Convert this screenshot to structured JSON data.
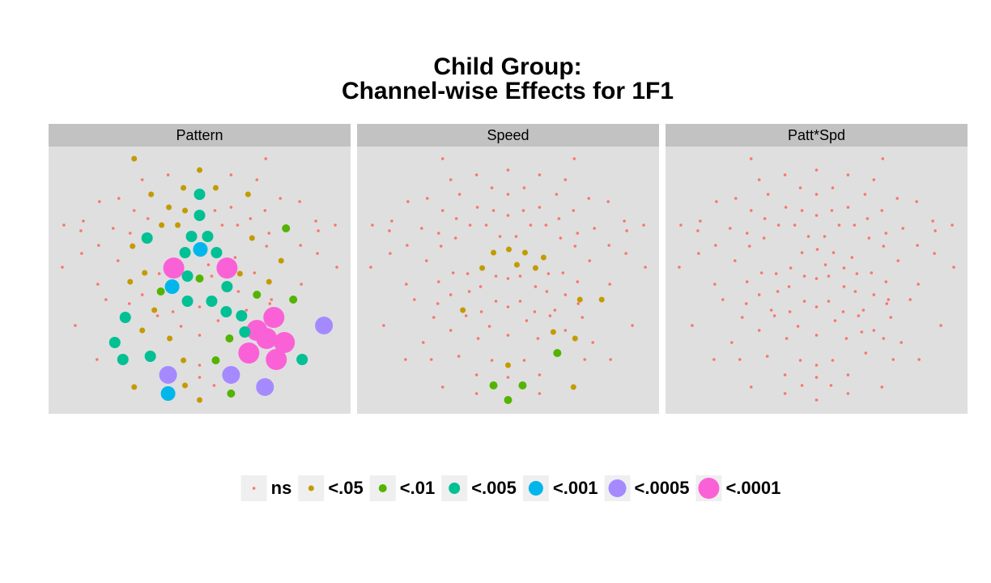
{
  "chart_data": {
    "type": "scatter",
    "title": [
      "Child Group:",
      "Channel-wise Effects for 1F1"
    ],
    "x": [
      -81,
      82,
      0,
      -39,
      39,
      -71,
      71,
      -20,
      20,
      -60,
      0,
      60,
      -100,
      100,
      -124,
      124,
      -38,
      39,
      -81,
      -18,
      19,
      81,
      0,
      -64,
      63,
      -144,
      144,
      -168,
      -47,
      -27,
      28,
      47,
      168,
      -107,
      107,
      -147,
      147,
      -86,
      86,
      -10,
      10,
      -65,
      65,
      -125,
      125,
      -83,
      83,
      1,
      -18,
      21,
      -146,
      146,
      44,
      -101,
      101,
      11,
      -170,
      170,
      -32,
      34,
      -68,
      68,
      -50,
      50,
      -15,
      15,
      0,
      -86,
      86,
      -126,
      126,
      -34,
      34,
      -48,
      48,
      -71,
      71,
      -116,
      116,
      89,
      -15,
      15,
      -87,
      87,
      0,
      -56,
      58,
      -33,
      33,
      -52,
      52,
      -92,
      92,
      23,
      -154,
      154,
      -23,
      -71,
      71,
      56,
      0,
      -37,
      37,
      83,
      -105,
      105,
      61,
      -61,
      -127,
      -95,
      95,
      127,
      -20,
      20,
      0,
      -39,
      39,
      0,
      -18,
      18,
      -81,
      81,
      -39,
      39,
      0
    ],
    "y": [
      150,
      150,
      136,
      130,
      130,
      124,
      124,
      114,
      114,
      106,
      106,
      106,
      101,
      101,
      97,
      97,
      90,
      90,
      86,
      86,
      86,
      86,
      80,
      76,
      76,
      73,
      73,
      68,
      68,
      68,
      68,
      68,
      68,
      64,
      64,
      61,
      61,
      58,
      58,
      54,
      54,
      52,
      52,
      43,
      43,
      42,
      42,
      38,
      34,
      34,
      33,
      33,
      28,
      24,
      24,
      19,
      16,
      16,
      15,
      15,
      9,
      9,
      8,
      8,
      5,
      5,
      2,
      -2,
      -2,
      -5,
      -5,
      -8,
      -8,
      -14,
      -14,
      -18,
      -18,
      -24,
      -24,
      -24,
      -26,
      -26,
      -29,
      -29,
      -33,
      -37,
      -37,
      -39,
      -39,
      -44,
      -44,
      -46,
      -46,
      -50,
      -56,
      -56,
      -57,
      -62,
      -62,
      -64,
      -68,
      -72,
      -72,
      -72,
      -77,
      -77,
      -90,
      -94,
      -98,
      -98,
      -98,
      -98,
      -99,
      -99,
      -105,
      -117,
      -117,
      -120,
      -130,
      -130,
      -132,
      -132,
      -140,
      -140,
      -148
    ],
    "xlim": [
      -187,
      187
    ],
    "ylim": [
      -165,
      165
    ],
    "legend": [
      {
        "name": "ns",
        "color": "#F8766D",
        "size": 1.8
      },
      {
        "name": "<.05",
        "color": "#C49A00",
        "size": 3.5
      },
      {
        "name": "<.01",
        "color": "#53B400",
        "size": 5
      },
      {
        "name": "<.005",
        "color": "#00C094",
        "size": 7
      },
      {
        "name": "<.001",
        "color": "#00B6EB",
        "size": 9
      },
      {
        "name": "<.0005",
        "color": "#A58AFF",
        "size": 11
      },
      {
        "name": "<.0001",
        "color": "#FB61D7",
        "size": 13
      }
    ],
    "facets": [
      {
        "name": "Pattern",
        "levels": [
          1,
          0,
          1,
          0,
          0,
          0,
          0,
          1,
          1,
          1,
          3,
          1,
          0,
          0,
          0,
          0,
          1,
          0,
          0,
          1,
          0,
          0,
          3,
          0,
          0,
          0,
          0,
          0,
          1,
          1,
          0,
          0,
          0,
          0,
          2,
          0,
          0,
          0,
          0,
          3,
          3,
          3,
          1,
          0,
          0,
          1,
          0,
          4,
          3,
          3,
          0,
          0,
          0,
          0,
          1,
          0,
          0,
          0,
          6,
          6,
          1,
          0,
          0,
          1,
          3,
          0,
          2,
          1,
          1,
          0,
          0,
          4,
          3,
          2,
          0,
          0,
          2,
          0,
          2,
          0,
          3,
          3,
          0,
          0,
          0,
          1,
          0,
          0,
          3,
          0,
          3,
          3,
          6,
          0,
          0,
          5,
          0,
          1,
          6,
          3,
          0,
          1,
          2,
          6,
          3,
          6,
          6,
          3,
          0,
          3,
          6,
          3,
          1,
          2,
          0,
          5,
          5,
          0,
          1,
          0,
          1,
          5,
          4,
          2,
          1
        ]
      },
      {
        "name": "Speed",
        "levels": [
          0,
          0,
          0,
          0,
          0,
          0,
          0,
          0,
          0,
          0,
          0,
          0,
          0,
          0,
          0,
          0,
          0,
          0,
          0,
          0,
          0,
          0,
          0,
          0,
          0,
          0,
          0,
          0,
          0,
          0,
          0,
          0,
          0,
          0,
          0,
          0,
          0,
          0,
          0,
          0,
          0,
          0,
          0,
          0,
          0,
          0,
          0,
          1,
          1,
          1,
          0,
          0,
          1,
          0,
          0,
          1,
          0,
          0,
          1,
          1,
          0,
          0,
          0,
          0,
          0,
          0,
          0,
          0,
          0,
          0,
          0,
          0,
          0,
          0,
          0,
          0,
          0,
          0,
          1,
          1,
          0,
          0,
          0,
          0,
          0,
          1,
          0,
          0,
          0,
          0,
          0,
          0,
          0,
          0,
          0,
          0,
          0,
          0,
          0,
          1,
          0,
          0,
          0,
          1,
          0,
          0,
          2,
          0,
          0,
          0,
          0,
          0,
          0,
          0,
          1,
          0,
          0,
          0,
          2,
          2,
          0,
          1,
          0,
          0,
          2
        ]
      },
      {
        "name": "Patt*Spd",
        "levels": [
          0,
          0,
          0,
          0,
          0,
          0,
          0,
          0,
          0,
          0,
          0,
          0,
          0,
          0,
          0,
          0,
          0,
          0,
          0,
          0,
          0,
          0,
          0,
          0,
          0,
          0,
          0,
          0,
          0,
          0,
          0,
          0,
          0,
          0,
          0,
          0,
          0,
          0,
          0,
          0,
          0,
          0,
          0,
          0,
          0,
          0,
          0,
          0,
          0,
          0,
          0,
          0,
          0,
          0,
          0,
          0,
          0,
          0,
          0,
          0,
          0,
          0,
          0,
          0,
          0,
          0,
          0,
          0,
          0,
          0,
          0,
          0,
          0,
          0,
          0,
          0,
          0,
          0,
          0,
          0,
          0,
          0,
          0,
          0,
          0,
          0,
          0,
          0,
          0,
          0,
          0,
          0,
          0,
          0,
          0,
          0,
          0,
          0,
          0,
          0,
          0,
          0,
          0,
          0,
          0,
          0,
          0,
          0,
          0,
          0,
          0,
          0,
          0,
          0,
          0,
          0,
          0,
          0,
          0,
          0,
          0,
          0,
          0,
          0,
          0
        ]
      }
    ]
  }
}
